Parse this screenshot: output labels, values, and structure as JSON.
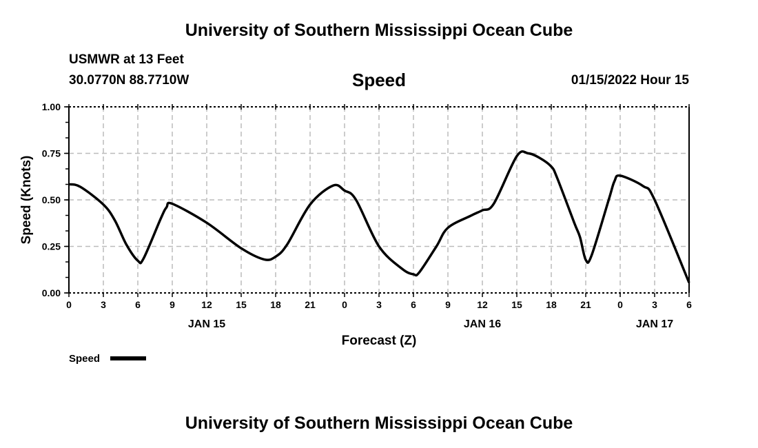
{
  "header": {
    "title": "University of Southern Mississippi Ocean Cube",
    "station": "USMWR at 13 Feet",
    "coords": "30.0770N  88.7710W",
    "datetime": "01/15/2022 Hour 15"
  },
  "footer": {
    "title": "University of Southern Mississippi Ocean Cube"
  },
  "chart_data": {
    "type": "line",
    "title": "Speed",
    "xlabel": "Forecast (Z)",
    "ylabel": "Speed (Knots)",
    "xlim": [
      0,
      54
    ],
    "ylim": [
      0,
      1
    ],
    "grid": true,
    "yticks": [
      "0.00",
      "0.25",
      "0.50",
      "0.75",
      "1.00"
    ],
    "xticks": [
      "0",
      "3",
      "6",
      "9",
      "12",
      "15",
      "18",
      "21",
      "0",
      "3",
      "6",
      "9",
      "12",
      "15",
      "18",
      "21",
      "0",
      "3",
      "6"
    ],
    "date_labels": [
      {
        "hour": 12,
        "label": "JAN 15"
      },
      {
        "hour": 36,
        "label": "JAN 16"
      },
      {
        "hour": 51,
        "label": "JAN 17"
      }
    ],
    "legend": {
      "position": "bottom-left",
      "label": "Speed"
    },
    "series": [
      {
        "name": "Speed",
        "color": "#000000",
        "x": [
          0,
          1,
          3,
          4,
          5,
          6,
          6.5,
          8,
          8.5,
          9,
          12,
          15,
          17,
          18,
          19,
          21,
          23,
          24,
          25,
          27,
          29,
          30,
          30.5,
          32,
          33,
          35,
          36,
          37,
          39,
          40,
          41,
          42,
          42.5,
          44,
          44.5,
          45,
          45.5,
          47,
          47.5,
          48,
          50,
          51,
          54
        ],
        "y": [
          0.584,
          0.57,
          0.475,
          0.39,
          0.26,
          0.173,
          0.185,
          0.4,
          0.46,
          0.479,
          0.377,
          0.24,
          0.18,
          0.195,
          0.26,
          0.475,
          0.577,
          0.55,
          0.5,
          0.25,
          0.13,
          0.1,
          0.11,
          0.25,
          0.35,
          0.415,
          0.444,
          0.48,
          0.735,
          0.75,
          0.725,
          0.679,
          0.62,
          0.377,
          0.3,
          0.178,
          0.2,
          0.5,
          0.6,
          0.63,
          0.574,
          0.5,
          0.055
        ]
      }
    ]
  }
}
